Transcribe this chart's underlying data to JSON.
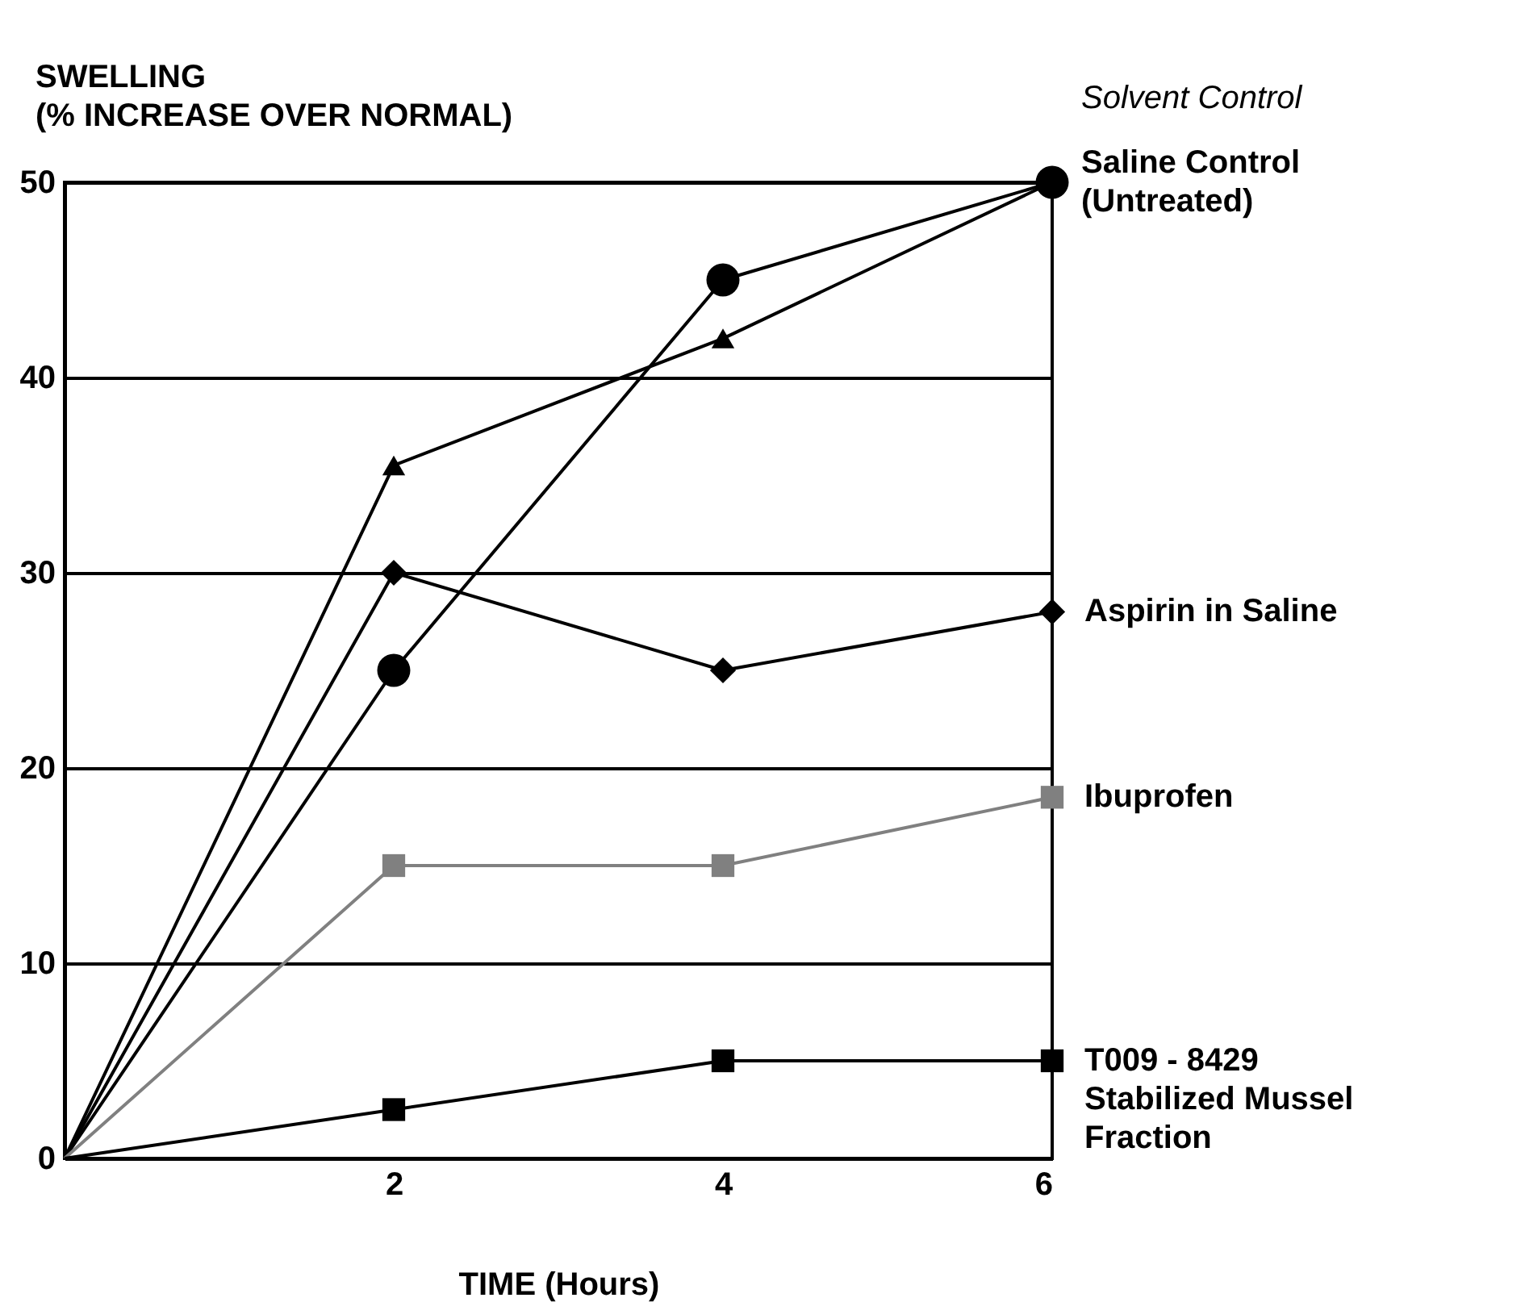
{
  "chart_data": {
    "type": "line",
    "xlabel": "TIME (Hours)",
    "ylabel": "SWELLING\n(% INCREASE OVER NORMAL)",
    "x": [
      0,
      2,
      4,
      6
    ],
    "xlim": [
      0,
      6
    ],
    "xticks": [
      2,
      4,
      6
    ],
    "ylim": [
      0,
      50
    ],
    "yticks": [
      0,
      10,
      20,
      30,
      40,
      50
    ],
    "grid": "y",
    "series": [
      {
        "name": "Solvent Control",
        "color": "#000000",
        "marker": "triangle",
        "values": [
          0,
          35.5,
          42,
          50
        ]
      },
      {
        "name": "Saline Control\n(Untreated)",
        "color": "#000000",
        "marker": "circle",
        "values": [
          0,
          25,
          45,
          50
        ]
      },
      {
        "name": "Aspirin in Saline",
        "color": "#000000",
        "marker": "diamond",
        "values": [
          0,
          30,
          25,
          28
        ]
      },
      {
        "name": "Ibuprofen",
        "color": "#808080",
        "marker": "square",
        "values": [
          0,
          15,
          15,
          18.5
        ]
      },
      {
        "name": "T009 - 8429\nStabilized Mussel\nFraction",
        "color": "#000000",
        "marker": "square",
        "values": [
          0,
          2.5,
          5,
          5
        ]
      }
    ]
  }
}
